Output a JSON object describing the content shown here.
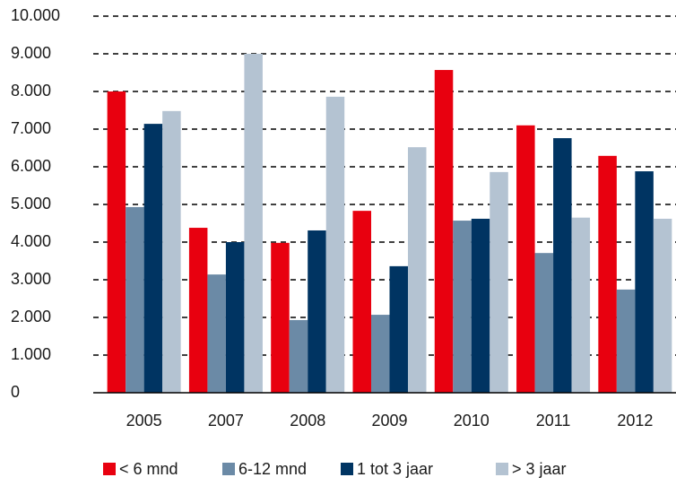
{
  "chart_data": {
    "type": "bar",
    "categories": [
      "2005",
      "2007",
      "2008",
      "2009",
      "2010",
      "2011",
      "2012"
    ],
    "series": [
      {
        "name": "< 6 mnd",
        "color": "#e8000f",
        "values": [
          8000,
          4380,
          3980,
          4830,
          8570,
          7100,
          6290
        ]
      },
      {
        "name": "6-12 mnd",
        "color": "#6b8aa6",
        "values": [
          4930,
          3140,
          1930,
          2070,
          4570,
          3710,
          2740
        ]
      },
      {
        "name": "1 tot 3 jaar",
        "color": "#003462",
        "values": [
          7140,
          4000,
          4310,
          3360,
          4620,
          6760,
          5880
        ]
      },
      {
        "name": "> 3 jaar",
        "color": "#b4c3d2",
        "values": [
          7480,
          9000,
          7860,
          6520,
          5860,
          4650,
          4620
        ]
      }
    ],
    "ylim": [
      0,
      10000
    ],
    "yticks": [
      0,
      {
        "value": 1000,
        "label": "1.000"
      },
      {
        "value": 2000,
        "label": "2.000"
      },
      {
        "value": 3000,
        "label": "3.000"
      },
      {
        "value": 4000,
        "label": "4.000"
      },
      {
        "value": 5000,
        "label": "5.000"
      },
      {
        "value": 6000,
        "label": "6.000"
      },
      {
        "value": 7000,
        "label": "7.000"
      },
      {
        "value": 8000,
        "label": "8.000"
      },
      {
        "value": 9000,
        "label": "9.000"
      },
      {
        "value": 10000,
        "label": "10.000"
      }
    ],
    "grid": true,
    "legend": "bottom"
  }
}
